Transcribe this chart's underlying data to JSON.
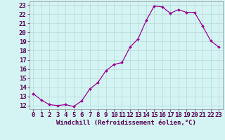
{
  "x": [
    0,
    1,
    2,
    3,
    4,
    5,
    6,
    7,
    8,
    9,
    10,
    11,
    12,
    13,
    14,
    15,
    16,
    17,
    18,
    19,
    20,
    21,
    22,
    23
  ],
  "y": [
    13.3,
    12.6,
    12.1,
    12.0,
    12.1,
    11.9,
    12.5,
    13.8,
    14.5,
    15.8,
    16.5,
    16.7,
    18.4,
    19.3,
    21.3,
    22.9,
    22.8,
    22.1,
    22.5,
    22.2,
    22.2,
    20.7,
    19.1,
    18.4
  ],
  "line_color": "#990099",
  "marker_color": "#990099",
  "bg_color": "#d4f4f4",
  "grid_color": "#b8d8d8",
  "xlabel": "Windchill (Refroidissement éolien,°C)",
  "ylabel_ticks": [
    12,
    13,
    14,
    15,
    16,
    17,
    18,
    19,
    20,
    21,
    22,
    23
  ],
  "xlim": [
    -0.5,
    23.5
  ],
  "ylim": [
    11.6,
    23.4
  ],
  "xlabel_fontsize": 6.5,
  "tick_fontsize": 6.5
}
